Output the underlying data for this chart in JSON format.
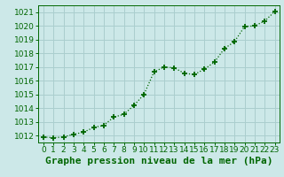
{
  "x": [
    0,
    1,
    2,
    3,
    4,
    5,
    6,
    7,
    8,
    9,
    10,
    11,
    12,
    13,
    14,
    15,
    16,
    17,
    18,
    19,
    20,
    21,
    22,
    23
  ],
  "y": [
    1011.9,
    1011.85,
    1011.9,
    1012.1,
    1012.25,
    1012.6,
    1012.75,
    1013.35,
    1013.55,
    1014.2,
    1015.0,
    1016.65,
    1017.0,
    1016.95,
    1016.55,
    1016.45,
    1016.85,
    1017.35,
    1018.35,
    1018.85,
    1019.95,
    1020.0,
    1020.35,
    1021.05
  ],
  "line_color": "#006600",
  "marker_color": "#006600",
  "bg_color": "#cce8e8",
  "grid_color": "#aacece",
  "title": "Graphe pression niveau de la mer (hPa)",
  "xlim": [
    -0.5,
    23.5
  ],
  "ylim": [
    1011.5,
    1021.5
  ],
  "yticks": [
    1012,
    1013,
    1014,
    1015,
    1016,
    1017,
    1018,
    1019,
    1020,
    1021
  ],
  "xticks": [
    0,
    1,
    2,
    3,
    4,
    5,
    6,
    7,
    8,
    9,
    10,
    11,
    12,
    13,
    14,
    15,
    16,
    17,
    18,
    19,
    20,
    21,
    22,
    23
  ],
  "title_color": "#006600",
  "tick_color": "#006600",
  "label_fontsize": 6.5,
  "title_fontsize": 8.0
}
